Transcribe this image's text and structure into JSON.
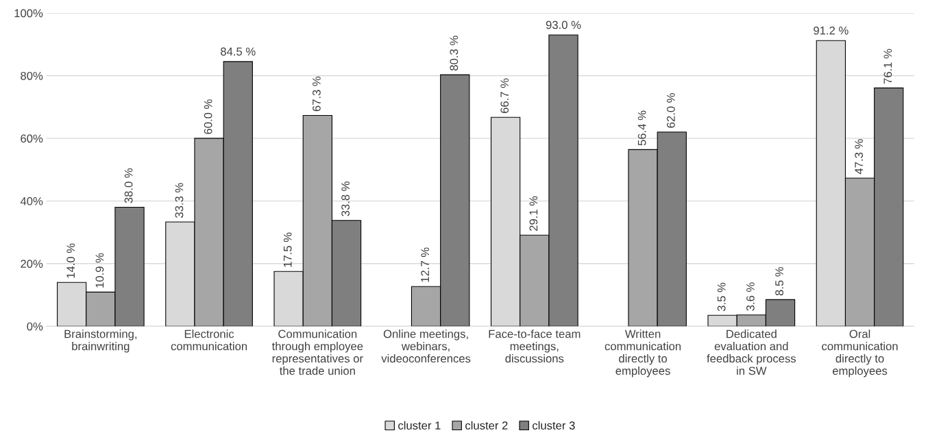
{
  "chart_data": {
    "type": "bar",
    "categories": [
      "Brainstorming,\nbrainwriting",
      "Electronic\ncommunication",
      "Communication\nthrough employee\nrepresentatives or\nthe trade union",
      "Online meetings,\nwebinars,\nvideoconferences",
      "Face-to-face team\nmeetings,\ndiscussions",
      "Written\ncommunication\ndirectly to\nemployees",
      "Dedicated\nevaluation and\nfeedback process\nin SW",
      "Oral\ncommunication\ndirectly to\nemployees"
    ],
    "series": [
      {
        "name": "cluster 1",
        "color": "#d9d9d9",
        "values": [
          14.0,
          33.3,
          17.5,
          null,
          66.7,
          null,
          3.5,
          91.2
        ],
        "value_labels": [
          "14.0 %",
          "33.3 %",
          "17.5 %",
          null,
          "66.7 %",
          null,
          "3.5 %",
          "91.2 %"
        ]
      },
      {
        "name": "cluster 2",
        "color": "#a6a6a6",
        "values": [
          10.9,
          60.0,
          67.3,
          12.7,
          29.1,
          56.4,
          3.6,
          47.3
        ],
        "value_labels": [
          "10.9 %",
          "60.0 %",
          "67.3 %",
          "12.7 %",
          "29.1 %",
          "56.4 %",
          "3.6 %",
          "47.3 %"
        ]
      },
      {
        "name": "cluster 3",
        "color": "#7f7f7f",
        "values": [
          38.0,
          84.5,
          33.8,
          80.3,
          93.0,
          62.0,
          8.5,
          76.1
        ],
        "value_labels": [
          "38.0 %",
          "84.5 %",
          "33.8 %",
          "80.3 %",
          "93.0 %",
          "62.0 %",
          "8.5 %",
          "76.1 %"
        ]
      }
    ],
    "ylim": [
      0,
      100
    ],
    "yticks": [
      {
        "value": 0,
        "label": "0%"
      },
      {
        "value": 20,
        "label": "20%"
      },
      {
        "value": 40,
        "label": "40%"
      },
      {
        "value": 60,
        "label": "60%"
      },
      {
        "value": 80,
        "label": "80%"
      },
      {
        "value": 100,
        "label": "100%"
      }
    ],
    "grid": "y",
    "legend": "bottom"
  }
}
